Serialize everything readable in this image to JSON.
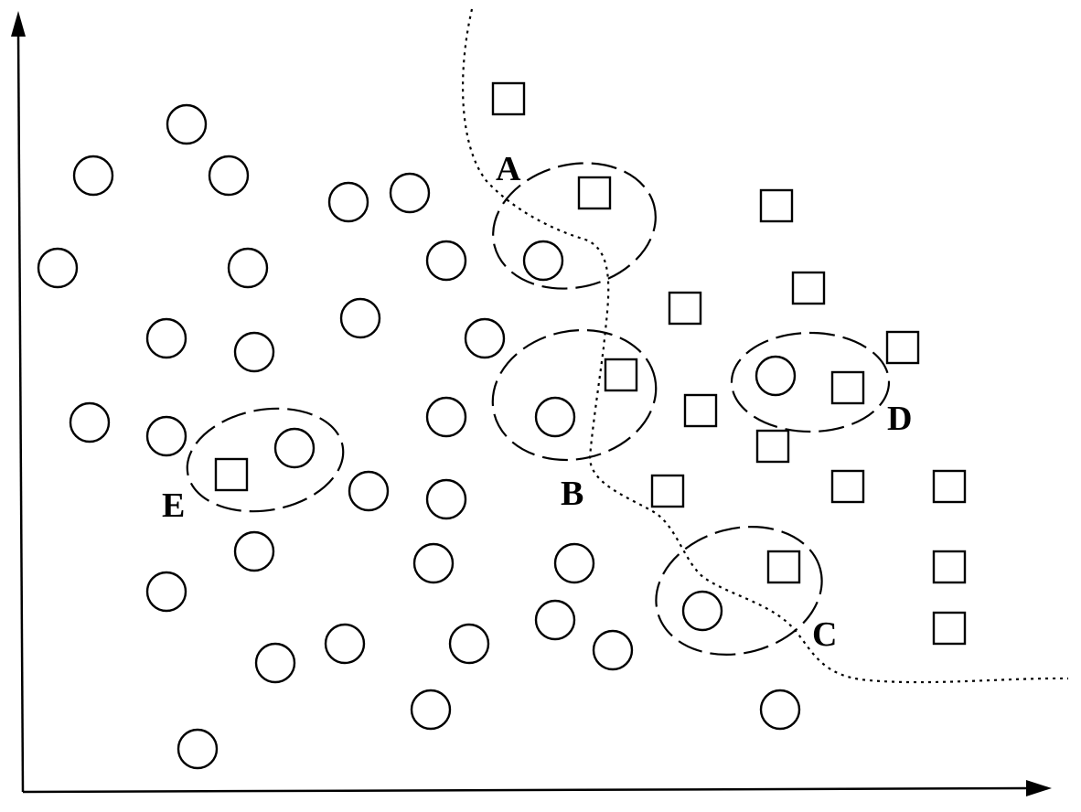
{
  "labels": {
    "A": "A",
    "B": "B",
    "C": "C",
    "D": "D",
    "E": "E"
  },
  "legend_shapes": {
    "class_1": "circle",
    "class_2": "square"
  },
  "colors": {
    "stroke": "#000000",
    "background": "#ffffff"
  }
}
